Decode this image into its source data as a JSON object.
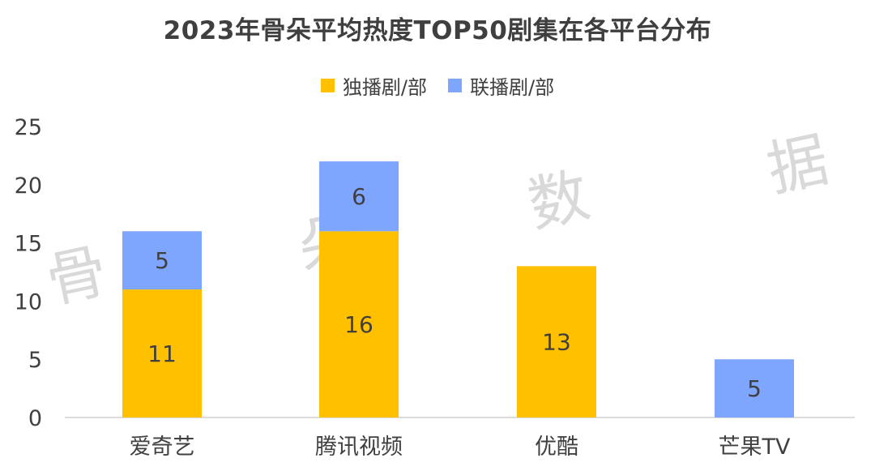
{
  "chart_data": {
    "type": "bar",
    "stacked": true,
    "title": "2023年骨朵平均热度TOP50剧集在各平台分布",
    "categories": [
      "爱奇艺",
      "腾讯视频",
      "优酷",
      "芒果TV"
    ],
    "series": [
      {
        "name": "独播剧/部",
        "values": [
          11,
          16,
          13,
          0
        ],
        "color": "#FFC000"
      },
      {
        "name": "联播剧/部",
        "values": [
          5,
          6,
          0,
          5
        ],
        "color": "#7FA6FF"
      }
    ],
    "ylim": [
      0,
      25
    ],
    "yticks": [
      0,
      5,
      10,
      15,
      20,
      25
    ],
    "grid": false,
    "legend_position": "top-center",
    "xlabel": "",
    "ylabel": ""
  },
  "watermark": {
    "characters": [
      "骨",
      "朵",
      "数",
      "据"
    ],
    "color": "#d9d9d9"
  }
}
